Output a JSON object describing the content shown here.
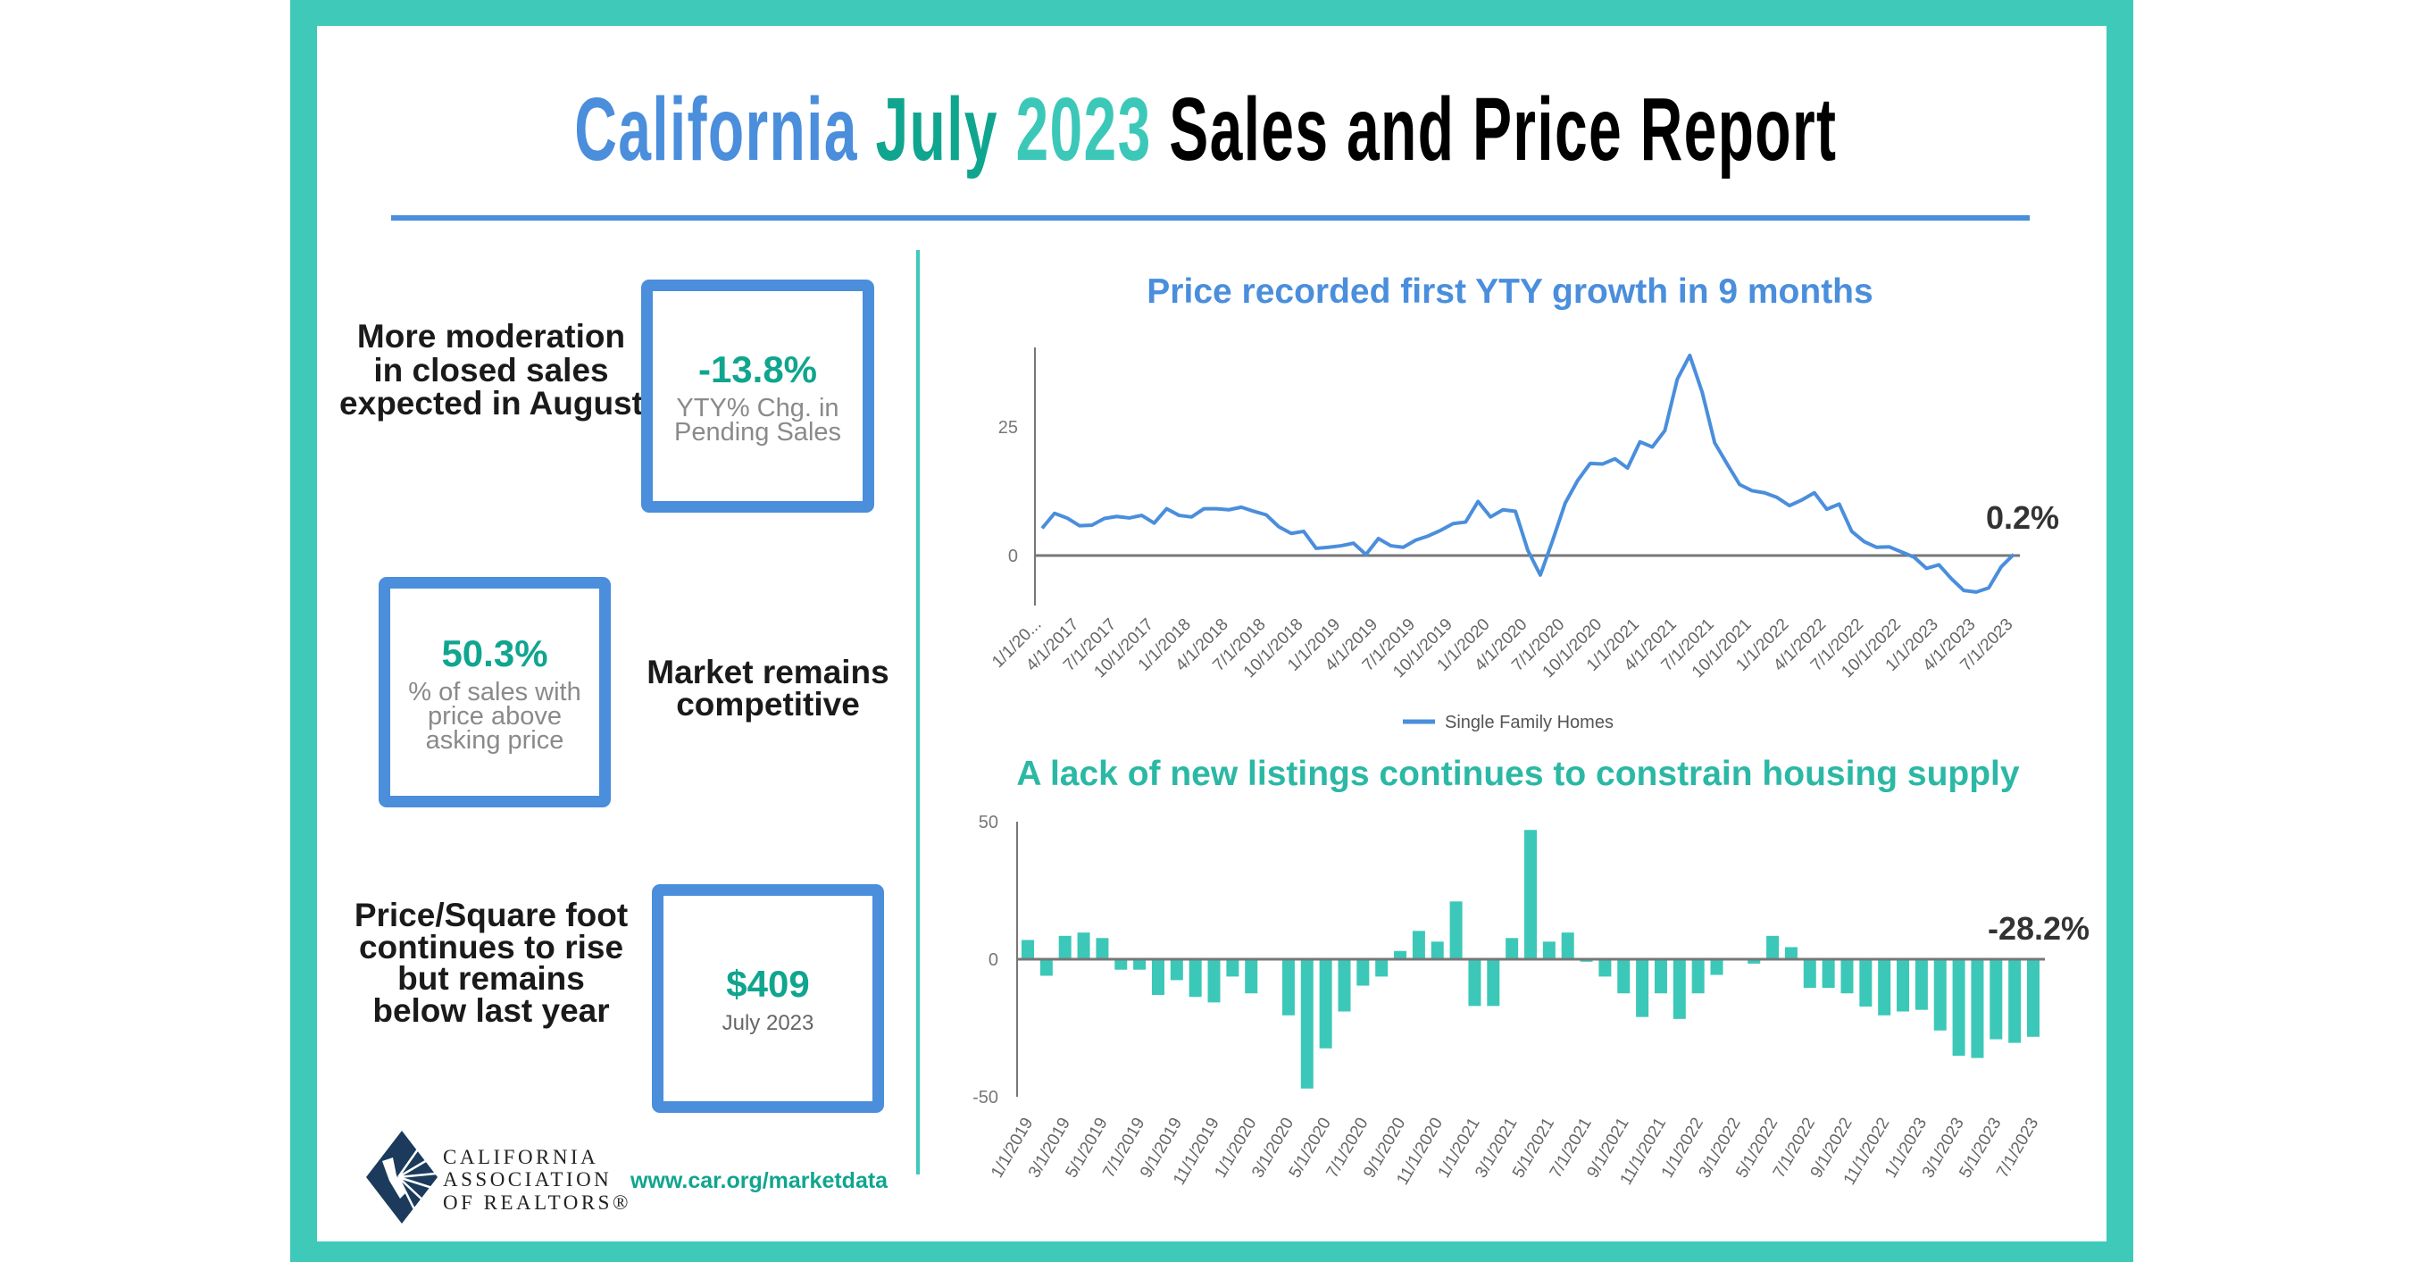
{
  "header": {
    "title_parts": [
      "California",
      "July",
      "2023",
      "Sales and Price Report"
    ]
  },
  "colors": {
    "frame": "#3ec9b9",
    "blue": "#4a8edc",
    "teal": "#10a58f",
    "light_teal": "#3cc8b8",
    "bar": "#3cc8b8",
    "line": "#4a8edc"
  },
  "left_panel": {
    "items": [
      {
        "text": "More moderation in closed sales expected in August",
        "value": "-13.8%",
        "label": "YTY% Chg. in Pending Sales"
      },
      {
        "text": "Market remains competitive",
        "value": "50.3%",
        "label": "% of sales with price above asking price"
      },
      {
        "text": "Price/Square foot continues to rise but remains below last year",
        "value": "$409",
        "label": "July 2023"
      }
    ]
  },
  "footer": {
    "logo_lines": [
      "CALIFORNIA",
      "ASSOCIATION",
      "OF REALTORS®"
    ],
    "url": "www.car.org/marketdata"
  },
  "chart_data": [
    {
      "type": "line",
      "title": "Price recorded first YTY growth in 9 months",
      "series": [
        {
          "name": "Single Family Homes",
          "values": [
            5.3,
            8.2,
            7.3,
            5.8,
            5.9,
            7.2,
            7.6,
            7.3,
            7.8,
            6.3,
            9.1,
            7.8,
            7.5,
            9.1,
            9.1,
            8.9,
            9.4,
            8.6,
            7.9,
            5.6,
            4.3,
            4.7,
            1.4,
            1.6,
            1.9,
            2.4,
            0.2,
            3.3,
            1.9,
            1.6,
            3.0,
            3.8,
            4.9,
            6.2,
            6.5,
            10.5,
            7.5,
            8.9,
            8.6,
            1.0,
            -3.8,
            3.0,
            10.2,
            14.6,
            17.9,
            17.8,
            18.8,
            17.0,
            22.1,
            21.1,
            24.3,
            34.3,
            38.9,
            31.7,
            21.9,
            17.8,
            13.8,
            12.6,
            12.2,
            11.3,
            9.7,
            10.8,
            12.2,
            9.0,
            10.0,
            4.7,
            2.7,
            1.6,
            1.7,
            0.7,
            -0.3,
            -2.5,
            -1.8,
            -4.5,
            -6.8,
            -7.1,
            -6.3,
            -2.2,
            0.2
          ]
        }
      ],
      "x_tick_labels": [
        "1/1/20...",
        "4/1/2017",
        "7/1/2017",
        "10/1/2017",
        "1/1/2018",
        "4/1/2018",
        "7/1/2018",
        "10/1/2018",
        "1/1/2019",
        "4/1/2019",
        "7/1/2019",
        "10/1/2019",
        "1/1/2020",
        "4/1/2020",
        "7/1/2020",
        "10/1/2020",
        "1/1/2021",
        "4/1/2021",
        "7/1/2021",
        "10/1/2021",
        "1/1/2022",
        "4/1/2022",
        "7/1/2022",
        "10/1/2022",
        "1/1/2023",
        "4/1/2023",
        "7/1/2023"
      ],
      "y_ticks": [
        "25",
        "0"
      ],
      "ylim": [
        -10,
        40
      ],
      "legend": "bottom",
      "annotation": "0.2%",
      "grid": false
    },
    {
      "type": "bar",
      "title": "A lack of new listings continues to constrain housing supply",
      "values": [
        7,
        -6,
        8.5,
        9.7,
        7.7,
        -3.8,
        -3.8,
        -13,
        -7.6,
        -13.7,
        -15.7,
        -6.3,
        -12.4,
        0,
        -20.4,
        -47,
        -32.4,
        -19,
        -9.6,
        -6.3,
        3,
        10.3,
        6.4,
        21,
        -17,
        -17,
        7.7,
        47,
        6.4,
        9.7,
        -0.9,
        -6.3,
        -12.4,
        -21,
        -12.4,
        -21.7,
        -12.4,
        -5.7,
        0.3,
        -1.6,
        8.5,
        4.4,
        -10.4,
        -10.4,
        -12.4,
        -17.2,
        -20.4,
        -19,
        -18.4,
        -25.9,
        -35.1,
        -35.9,
        -29.1,
        -30.4,
        -28.2
      ],
      "x_tick_labels": [
        "1/1/2019",
        "3/1/2019",
        "5/1/2019",
        "7/1/2019",
        "9/1/2019",
        "11/1/2019",
        "1/1/2020",
        "3/1/2020",
        "5/1/2020",
        "7/1/2020",
        "9/1/2020",
        "11/1/2020",
        "1/1/2021",
        "3/1/2021",
        "5/1/2021",
        "7/1/2021",
        "9/1/2021",
        "11/1/2021",
        "1/1/2022",
        "3/1/2022",
        "5/1/2022",
        "7/1/2022",
        "9/1/2022",
        "11/1/2022",
        "1/1/2023",
        "3/1/2023",
        "5/1/2023",
        "7/1/2023"
      ],
      "y_ticks": [
        "50",
        "0",
        "-50"
      ],
      "ylim": [
        -50,
        50
      ],
      "annotation": "-28.2%",
      "grid": false
    }
  ]
}
